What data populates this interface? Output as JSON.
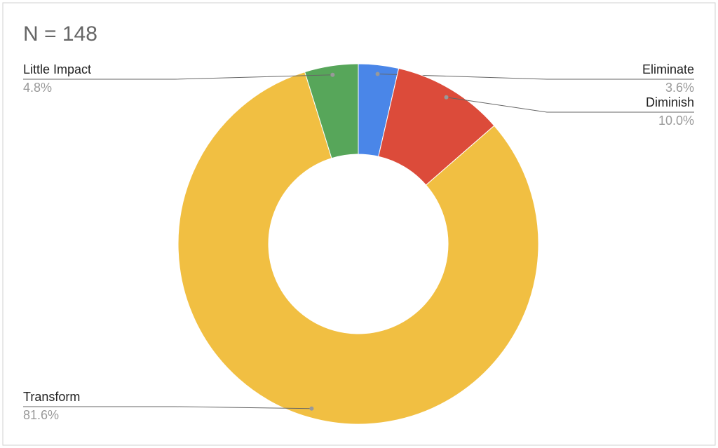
{
  "chart_data": {
    "type": "donut",
    "title": "N = 148",
    "categories": [
      "Eliminate",
      "Diminish",
      "Transform",
      "Little Impact"
    ],
    "values": [
      3.6,
      10.0,
      81.6,
      4.8
    ],
    "value_labels": [
      "3.6%",
      "10.0%",
      "81.6%",
      "4.8%"
    ],
    "colors": [
      "#4a86e8",
      "#dc4b3a",
      "#f1bf42",
      "#57a65a"
    ]
  }
}
